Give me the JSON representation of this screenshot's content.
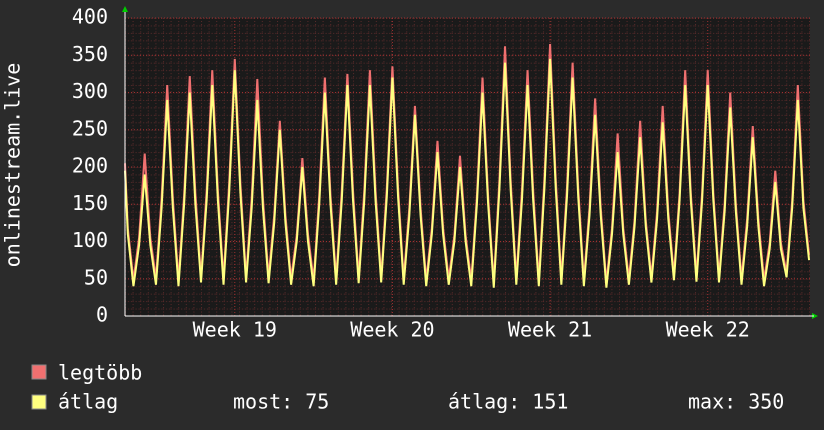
{
  "chart_data": {
    "type": "line",
    "y_label": "onlinestream.live",
    "xlim": [
      0,
      730
    ],
    "xticks": [
      {
        "value": 117,
        "label": "Week 19"
      },
      {
        "value": 285,
        "label": "Week 20"
      },
      {
        "value": 453,
        "label": "Week 21"
      },
      {
        "value": 621,
        "label": "Week 22"
      }
    ],
    "ylim": [
      0,
      400
    ],
    "yticks": [
      0,
      50,
      100,
      150,
      200,
      250,
      300,
      350,
      400
    ],
    "grid": true,
    "x": [
      0,
      3,
      9,
      15,
      21,
      27,
      33,
      39,
      45,
      51,
      57,
      63,
      69,
      75,
      81,
      87,
      93,
      99,
      105,
      111,
      117,
      123,
      129,
      135,
      141,
      147,
      153,
      159,
      165,
      171,
      177,
      183,
      189,
      195,
      201,
      207,
      213,
      219,
      225,
      231,
      237,
      243,
      249,
      255,
      261,
      267,
      273,
      279,
      285,
      291,
      297,
      303,
      309,
      315,
      321,
      327,
      333,
      339,
      345,
      351,
      357,
      363,
      369,
      375,
      381,
      387,
      393,
      399,
      405,
      411,
      417,
      423,
      429,
      435,
      441,
      447,
      453,
      459,
      465,
      471,
      477,
      483,
      489,
      495,
      501,
      507,
      513,
      519,
      525,
      531,
      537,
      543,
      549,
      555,
      561,
      567,
      573,
      579,
      585,
      591,
      597,
      603,
      609,
      615,
      621,
      627,
      633,
      639,
      645,
      651,
      657,
      663,
      669,
      675,
      681,
      687,
      693,
      699,
      705,
      711,
      717,
      723,
      729
    ],
    "series": [
      {
        "name": "legtöbb",
        "color": "#f07070",
        "values": [
          205,
          118,
          48,
          105,
          218,
          105,
          50,
          158,
          310,
          158,
          48,
          162,
          322,
          165,
          52,
          168,
          330,
          168,
          50,
          178,
          345,
          178,
          52,
          158,
          318,
          158,
          52,
          135,
          262,
          135,
          50,
          108,
          212,
          110,
          48,
          162,
          320,
          162,
          50,
          168,
          325,
          168,
          52,
          168,
          330,
          168,
          52,
          172,
          335,
          172,
          50,
          145,
          282,
          145,
          48,
          118,
          235,
          118,
          50,
          108,
          215,
          108,
          48,
          160,
          320,
          160,
          45,
          182,
          362,
          182,
          50,
          168,
          330,
          168,
          48,
          185,
          365,
          185,
          50,
          172,
          340,
          172,
          48,
          145,
          292,
          145,
          45,
          118,
          245,
          118,
          50,
          128,
          262,
          128,
          52,
          140,
          282,
          140,
          55,
          165,
          330,
          165,
          54,
          165,
          330,
          165,
          52,
          150,
          300,
          150,
          50,
          130,
          255,
          130,
          48,
          98,
          195,
          98,
          58,
          155,
          310,
          155,
          82
        ]
      },
      {
        "name": "átlag",
        "color": "#ffff80",
        "values": [
          195,
          110,
          40,
          95,
          190,
          95,
          42,
          145,
          290,
          145,
          40,
          150,
          300,
          150,
          45,
          155,
          310,
          155,
          42,
          165,
          330,
          165,
          45,
          145,
          290,
          145,
          44,
          125,
          250,
          125,
          42,
          100,
          200,
          100,
          40,
          150,
          300,
          150,
          42,
          155,
          310,
          155,
          44,
          155,
          310,
          155,
          45,
          160,
          320,
          160,
          42,
          135,
          270,
          135,
          40,
          110,
          220,
          110,
          42,
          100,
          200,
          100,
          40,
          150,
          300,
          150,
          38,
          170,
          340,
          170,
          42,
          155,
          310,
          155,
          40,
          172,
          345,
          172,
          42,
          160,
          320,
          160,
          40,
          135,
          270,
          135,
          38,
          110,
          220,
          110,
          42,
          120,
          240,
          120,
          45,
          130,
          260,
          130,
          48,
          155,
          310,
          155,
          46,
          155,
          310,
          155,
          45,
          140,
          280,
          140,
          42,
          120,
          240,
          120,
          40,
          90,
          180,
          90,
          52,
          145,
          290,
          145,
          75
        ]
      }
    ],
    "stats": {
      "current": "most: 75",
      "average": "átlag: 151",
      "maximum": "max: 350"
    }
  }
}
